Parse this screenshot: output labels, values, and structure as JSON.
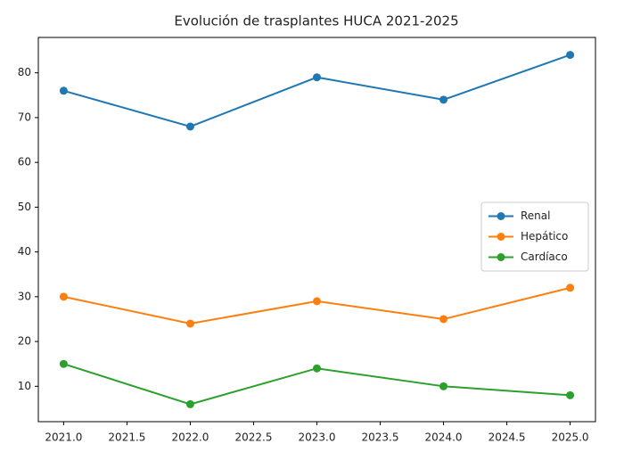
{
  "chart_data": {
    "type": "line",
    "title": "Evolución de trasplantes HUCA 2021-2025",
    "x": [
      2021,
      2022,
      2023,
      2024,
      2025
    ],
    "series": [
      {
        "name": "Renal",
        "color": "#1f77b4",
        "values": [
          76,
          68,
          79,
          74,
          84
        ]
      },
      {
        "name": "Hepático",
        "color": "#ff7f0e",
        "values": [
          30,
          24,
          29,
          25,
          32
        ]
      },
      {
        "name": "Cardíaco",
        "color": "#2ca02c",
        "values": [
          15,
          6,
          14,
          10,
          8
        ]
      }
    ],
    "xlim": [
      2020.8,
      2025.2
    ],
    "xticks": [
      {
        "value": 2021,
        "label": "2021.0"
      },
      2021.5,
      {
        "value": 2022,
        "label": "2022.0"
      },
      2022.5,
      {
        "value": 2023,
        "label": "2023.0"
      },
      2023.5,
      {
        "value": 2024,
        "label": "2024.0"
      },
      2024.5,
      {
        "value": 2025,
        "label": "2025.0"
      }
    ],
    "ylim": [
      2.1,
      87.9
    ],
    "yticks": [
      10,
      20,
      30,
      40,
      50,
      60,
      70,
      80
    ],
    "legend": "center right",
    "grid": false
  }
}
